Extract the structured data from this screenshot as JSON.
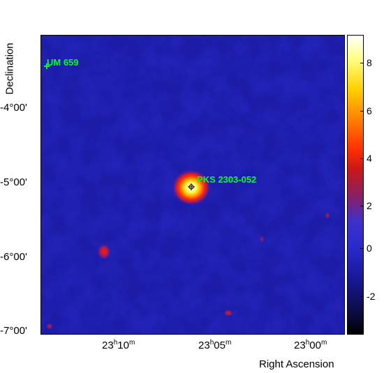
{
  "axes": {
    "y_title": "Declination",
    "x_title": "Right Ascension",
    "y_ticks": [
      "-4°00'",
      "-5°00'",
      "-6°00'",
      "-7°00'"
    ],
    "x_ticks": [
      {
        "h": "23",
        "hs": "h",
        "m": "10",
        "ms": "m"
      },
      {
        "h": "23",
        "hs": "h",
        "m": "05",
        "ms": "m"
      },
      {
        "h": "23",
        "hs": "h",
        "m": "00",
        "ms": "m"
      }
    ]
  },
  "colorbar": {
    "ticks": [
      "8",
      "6",
      "4",
      "2",
      "0",
      "-2"
    ],
    "range": [
      -3,
      9
    ]
  },
  "sources": [
    {
      "name": "UM 659"
    },
    {
      "name": "PKS 2303-052"
    }
  ],
  "colors": {
    "source_label": "#00ff22",
    "background_sky": "#1c1c9e"
  }
}
